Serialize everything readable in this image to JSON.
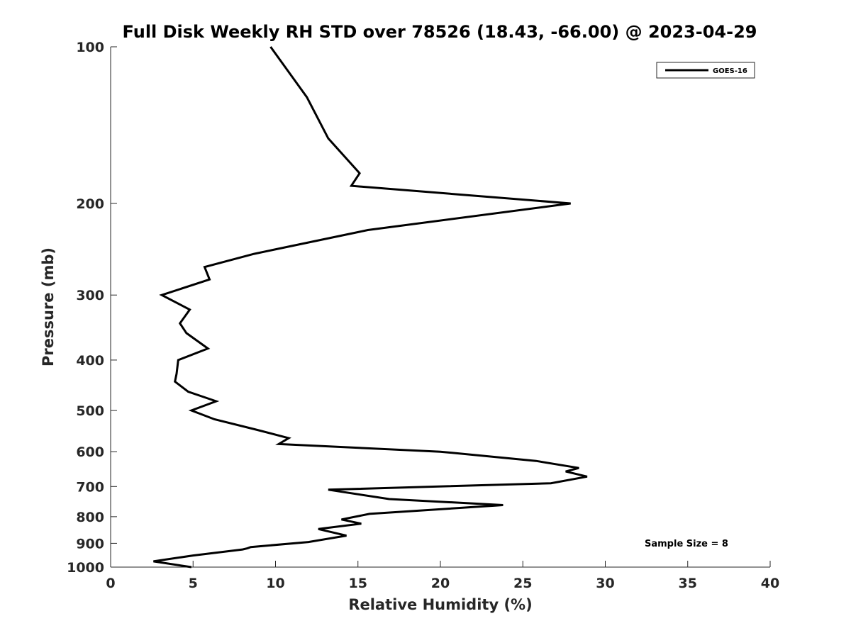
{
  "chart_data": {
    "type": "line",
    "title": "Full Disk Weekly RH STD over 78526 (18.43, -66.00) @ 2023-04-29",
    "xlabel": "Relative Humidity (%)",
    "ylabel": "Pressure (mb)",
    "xlim": [
      0,
      40
    ],
    "ylim": [
      100,
      1000
    ],
    "y_scale": "log",
    "y_reversed": true,
    "grid": false,
    "x_ticks": [
      0,
      5,
      10,
      15,
      20,
      25,
      30,
      35,
      40
    ],
    "x_tick_labels": [
      "0",
      "5",
      "10",
      "15",
      "20",
      "25",
      "30",
      "35",
      "40"
    ],
    "y_ticks": [
      100,
      200,
      300,
      400,
      500,
      600,
      700,
      800,
      900,
      1000
    ],
    "y_tick_labels": [
      "100",
      "200",
      "300",
      "400",
      "500",
      "600",
      "700",
      "800",
      "900",
      "1000"
    ],
    "legend": {
      "position": "top-right",
      "entries": [
        "GOES-16"
      ]
    },
    "annotation": "Sample Size = 8",
    "series": [
      {
        "name": "GOES-16",
        "color": "#000000",
        "points": [
          [
            9.7,
            100
          ],
          [
            11.9,
            125
          ],
          [
            13.2,
            150
          ],
          [
            15.1,
            175
          ],
          [
            14.6,
            185
          ],
          [
            27.9,
            200
          ],
          [
            15.6,
            225
          ],
          [
            8.7,
            250
          ],
          [
            5.7,
            265
          ],
          [
            6.0,
            280
          ],
          [
            3.1,
            300
          ],
          [
            4.8,
            320
          ],
          [
            4.2,
            340
          ],
          [
            4.6,
            355
          ],
          [
            5.9,
            380
          ],
          [
            4.1,
            400
          ],
          [
            4.0,
            425
          ],
          [
            3.9,
            440
          ],
          [
            4.7,
            460
          ],
          [
            6.4,
            480
          ],
          [
            4.9,
            500
          ],
          [
            6.3,
            520
          ],
          [
            8.9,
            545
          ],
          [
            10.8,
            565
          ],
          [
            10.2,
            580
          ],
          [
            20.0,
            600
          ],
          [
            25.8,
            625
          ],
          [
            28.4,
            645
          ],
          [
            27.6,
            655
          ],
          [
            28.9,
            670
          ],
          [
            26.7,
            690
          ],
          [
            13.2,
            710
          ],
          [
            16.9,
            740
          ],
          [
            23.8,
            760
          ],
          [
            15.7,
            790
          ],
          [
            14.0,
            810
          ],
          [
            15.2,
            825
          ],
          [
            12.6,
            845
          ],
          [
            14.3,
            870
          ],
          [
            12.0,
            895
          ],
          [
            8.5,
            915
          ],
          [
            8.3,
            920
          ],
          [
            8.0,
            925
          ],
          [
            5.0,
            950
          ],
          [
            2.6,
            975
          ],
          [
            4.9,
            1000
          ]
        ]
      }
    ]
  }
}
